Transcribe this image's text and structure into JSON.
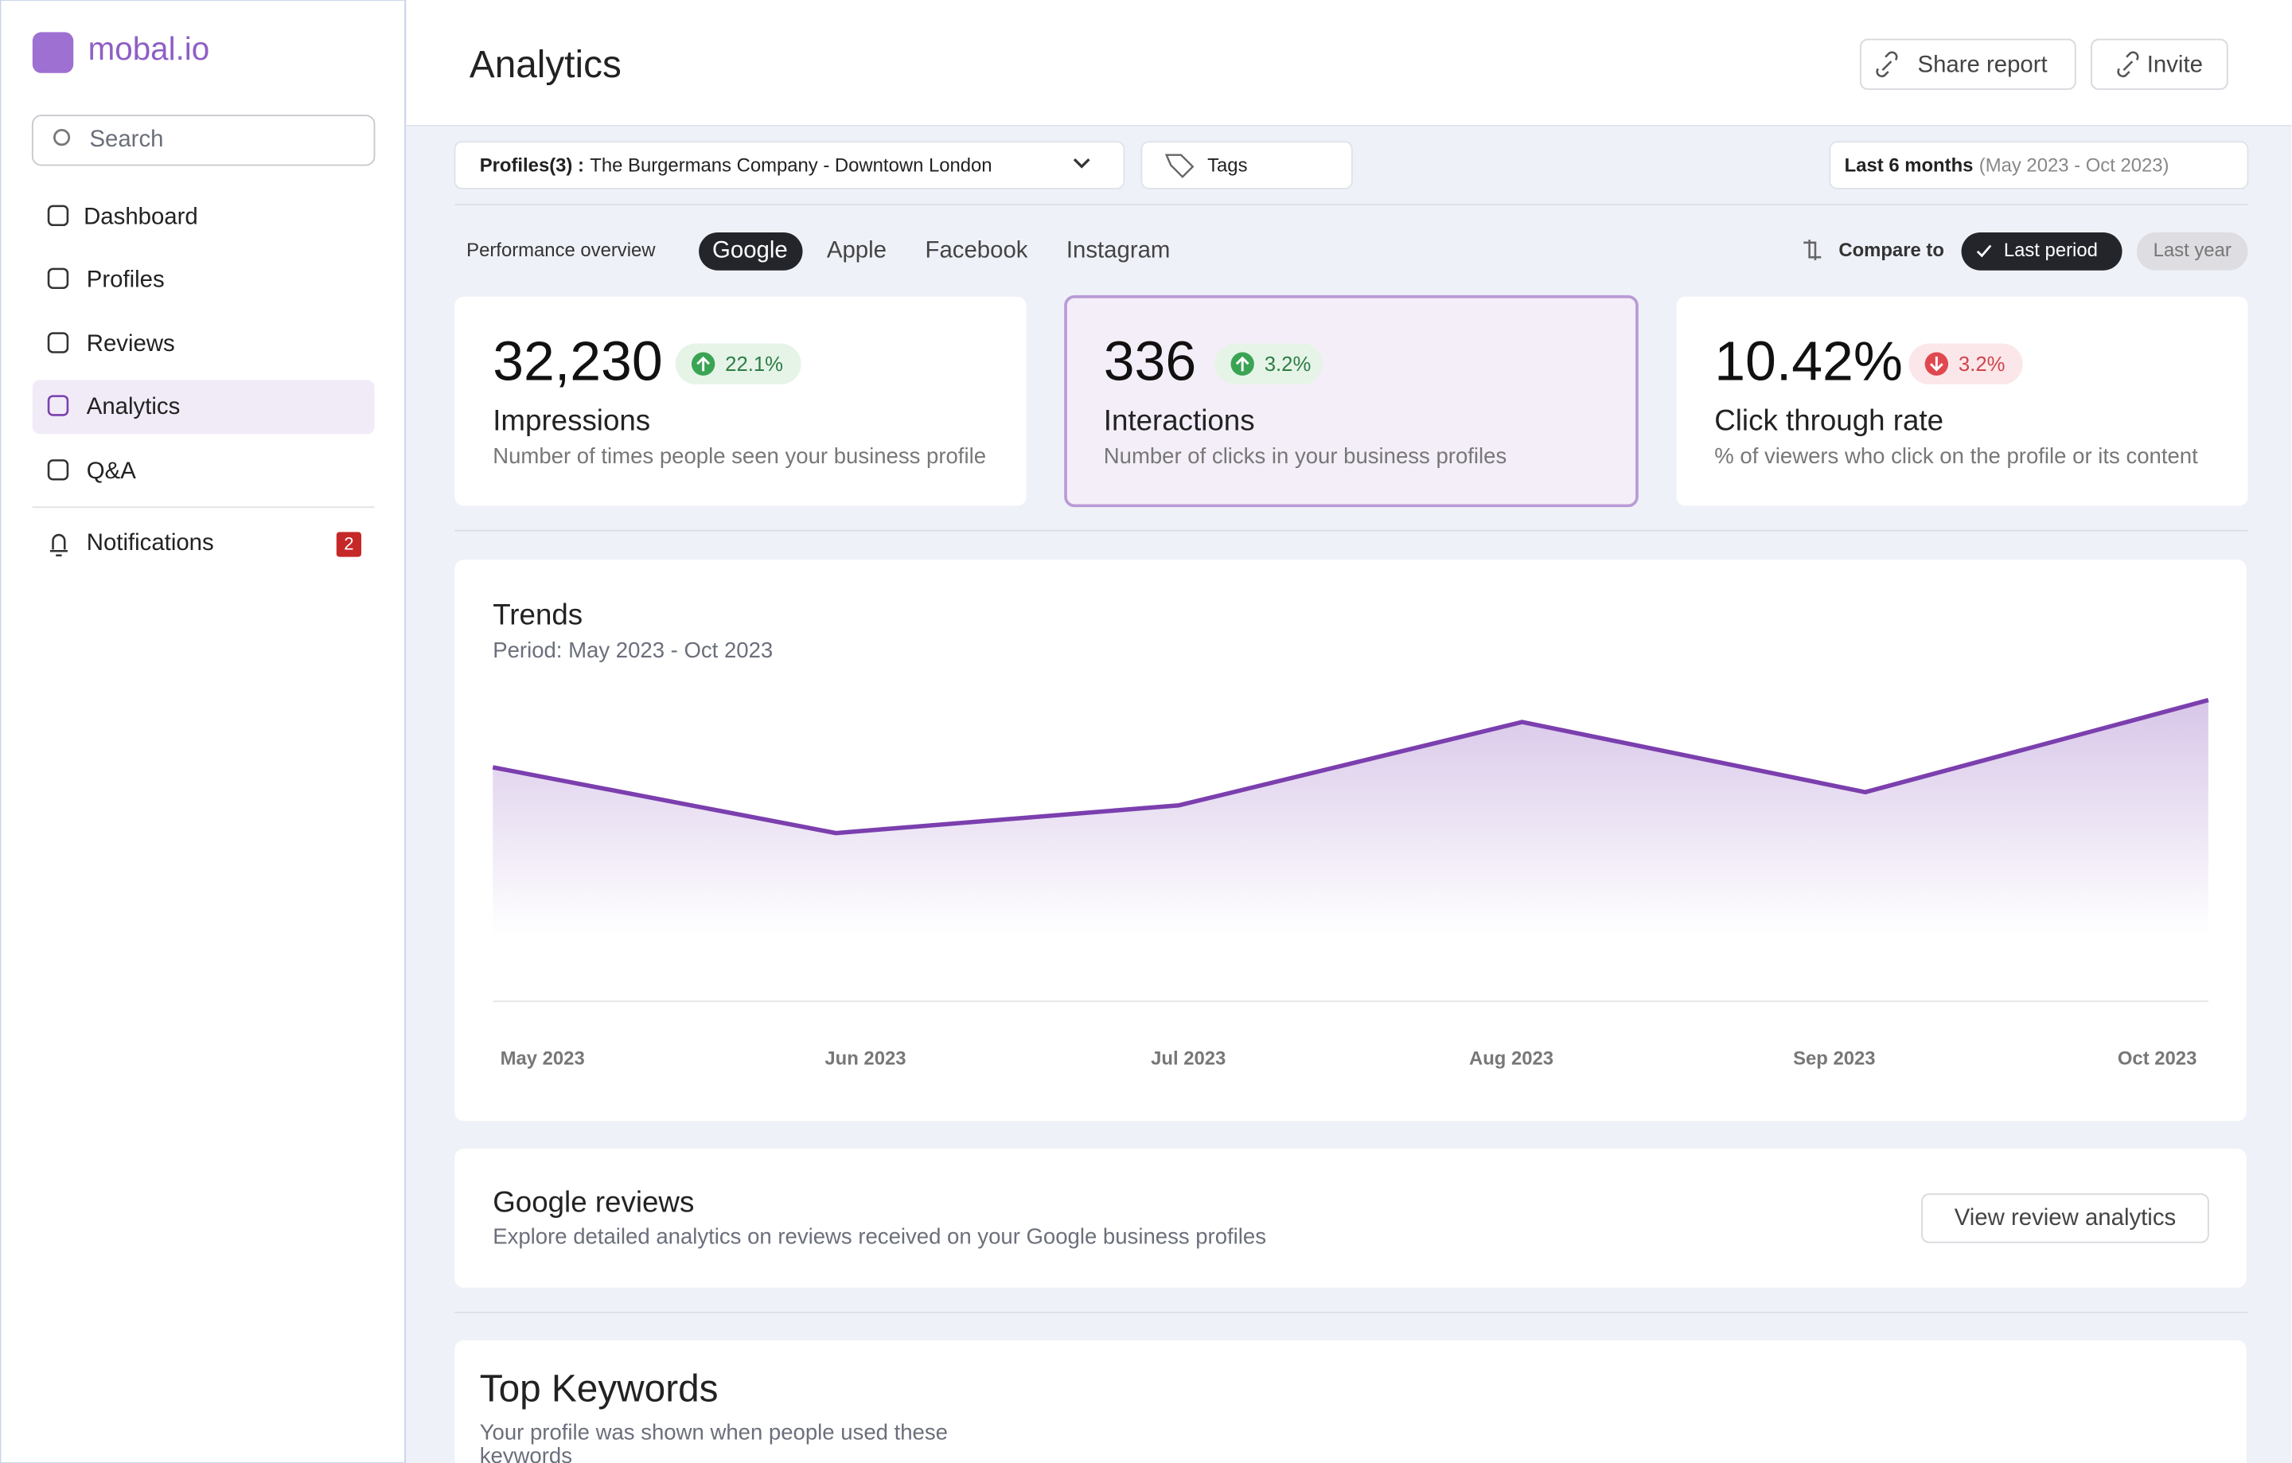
{
  "brand": "mobal.io",
  "sidebar": {
    "search": "Search",
    "nav": [
      "Dashboard",
      "Profiles",
      "Reviews",
      "Analytics",
      "Q&A"
    ],
    "notifications": "Notifications",
    "notification_count": "2"
  },
  "header": {
    "title": "Analytics",
    "share": "Share report",
    "invite": "Invite"
  },
  "filters": {
    "profiles_label": "Profiles(3) :",
    "profiles_value": "The Burgermans Company - Downtown London",
    "tags": "Tags",
    "period_label": "Last 6 months",
    "period_range": "(May 2023 - Oct 2023)"
  },
  "tabs": {
    "label": "Performance overview",
    "items": [
      "Google",
      "Apple",
      "Facebook",
      "Instagram"
    ],
    "compare": "Compare to",
    "last_period": "Last period",
    "last_year": "Last year"
  },
  "kpis": [
    {
      "value": "32,230",
      "change": "22.1%",
      "direction": "up",
      "title": "Impressions",
      "description": "Number of times people seen your business profile"
    },
    {
      "value": "336",
      "change": "3.2%",
      "direction": "up",
      "title": "Interactions",
      "description": "Number of clicks in your business profiles"
    },
    {
      "value": "10.42%",
      "change": "3.2%",
      "direction": "down",
      "title": "Click through rate",
      "description": "% of viewers who click on the profile or its content"
    }
  ],
  "chart_data": {
    "type": "line",
    "title": "Trends",
    "subtitle": "Period: May 2023 - Oct 2023",
    "categories": [
      "May 2023",
      "Jun 2023",
      "Jul 2023",
      "Aug 2023",
      "Sep 2023",
      "Oct 2023"
    ],
    "values": [
      160,
      115,
      134,
      191,
      143,
      206
    ],
    "ylim": [
      0,
      220
    ],
    "color": "#7b3fae"
  },
  "reviews": {
    "title": "Google reviews",
    "description": "Explore detailed analytics on reviews received on your Google business profiles",
    "button": "View review analytics"
  },
  "keywords": {
    "title": "Top Keywords",
    "description": [
      "Your profile was shown when people used these",
      "keywords"
    ]
  }
}
